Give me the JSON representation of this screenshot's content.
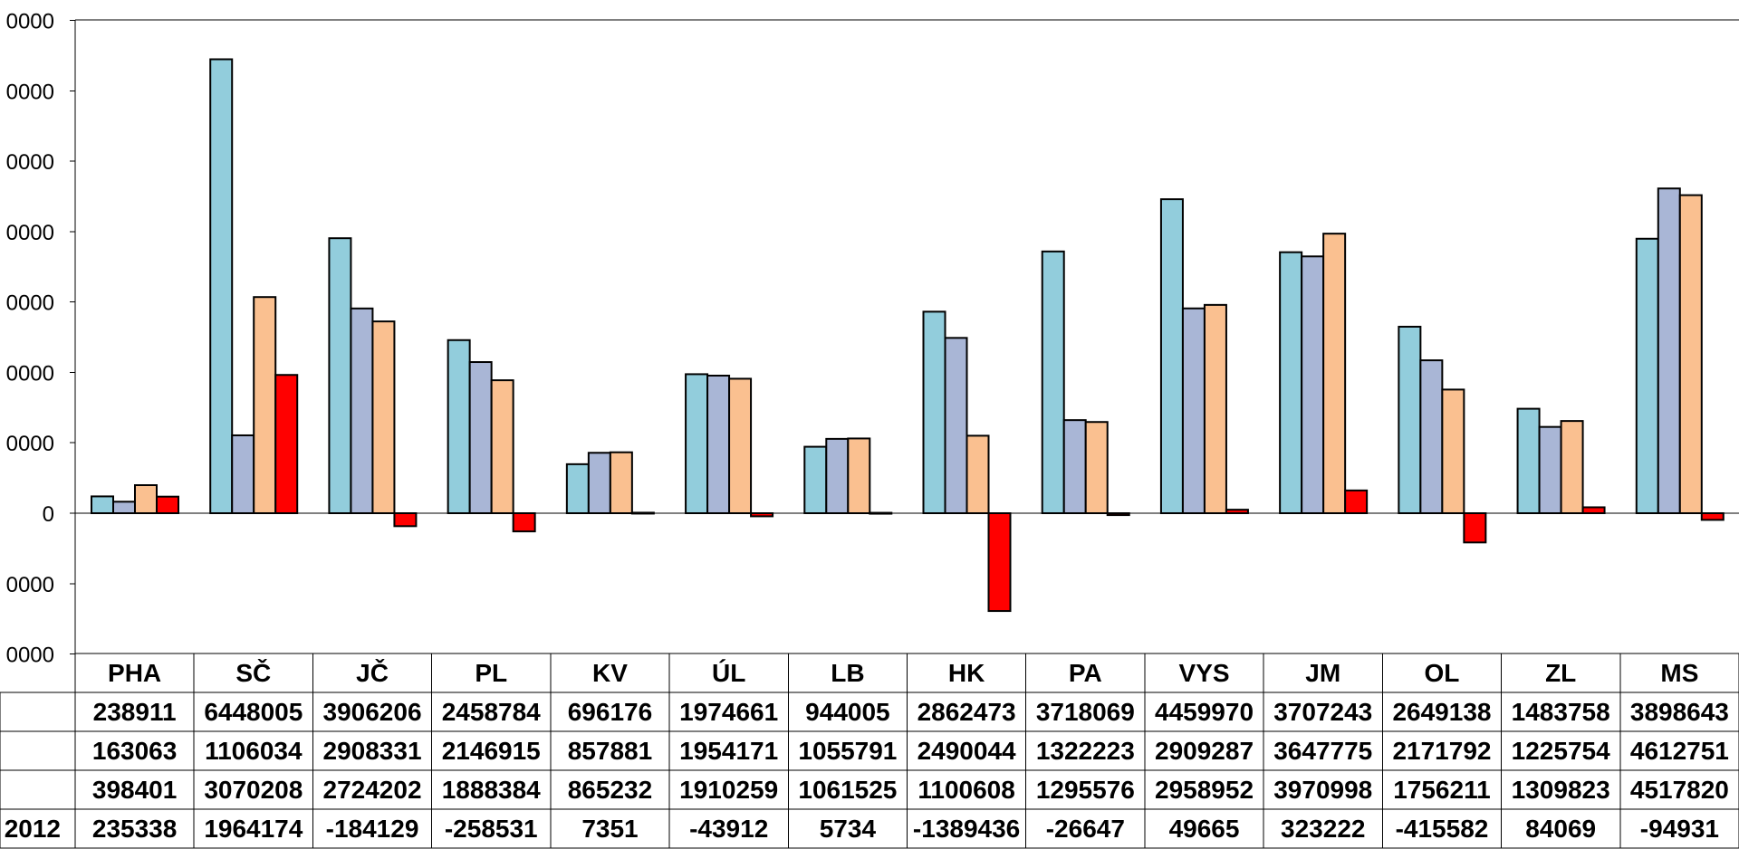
{
  "chart_data": {
    "type": "bar",
    "categories": [
      "PHA",
      "SČ",
      "JČ",
      "PL",
      "KV",
      "ÚL",
      "LB",
      "HK",
      "PA",
      "VYS",
      "JM",
      "OL",
      "ZL",
      "MS"
    ],
    "y_tick_labels": [
      "0000",
      "0000",
      "0000",
      "0000",
      "0000",
      "0000",
      "0000",
      "0",
      "0000",
      "0000"
    ],
    "ylim": [
      -2000000,
      7000000
    ],
    "grid": false,
    "legend": "none",
    "series": [
      {
        "name": "",
        "color": "#92CDDC",
        "values": [
          238911,
          6448005,
          3906206,
          2458784,
          696176,
          1974661,
          944005,
          2862473,
          3718069,
          4459970,
          3707243,
          2649138,
          1483758,
          3898643
        ]
      },
      {
        "name": "",
        "color": "#A9B6D6",
        "values": [
          163063,
          1106034,
          2908331,
          2146915,
          857881,
          1954171,
          1055791,
          2490044,
          1322223,
          2909287,
          3647775,
          2171792,
          1225754,
          4612751
        ]
      },
      {
        "name": "",
        "color": "#FAC090",
        "values": [
          398401,
          3070208,
          2724202,
          1888384,
          865232,
          1910259,
          1061525,
          1100608,
          1295576,
          2958952,
          3970998,
          1756211,
          1309823,
          4517820
        ]
      },
      {
        "name": "2012",
        "color": "#FF0000",
        "values": [
          235338,
          1964174,
          -184129,
          -258531,
          7351,
          -43912,
          5734,
          -1389436,
          -26647,
          49665,
          323222,
          -415582,
          84069,
          -94931
        ]
      }
    ],
    "table_rows": [
      [
        "238911",
        "6448005",
        "3906206",
        "2458784",
        "696176",
        "1974661",
        "944005",
        "2862473",
        "3718069",
        "4459970",
        "3707243",
        "2649138",
        "1483758",
        "3898643"
      ],
      [
        "163063",
        "1106034",
        "2908331",
        "2146915",
        "857881",
        "1954171",
        "1055791",
        "2490044",
        "1322223",
        "2909287",
        "3647775",
        "2171792",
        "1225754",
        "4612751"
      ],
      [
        "398401",
        "3070208",
        "2724202",
        "1888384",
        "865232",
        "1910259",
        "1061525",
        "1100608",
        "1295576",
        "2958952",
        "3970998",
        "1756211",
        "1309823",
        "4517820"
      ],
      [
        "235338",
        "1964174",
        "-184129",
        "-258531",
        "7351",
        "-43912",
        "5734",
        "-1389436",
        "-26647",
        "49665",
        "323222",
        "-415582",
        "84069",
        "-94931"
      ]
    ]
  }
}
